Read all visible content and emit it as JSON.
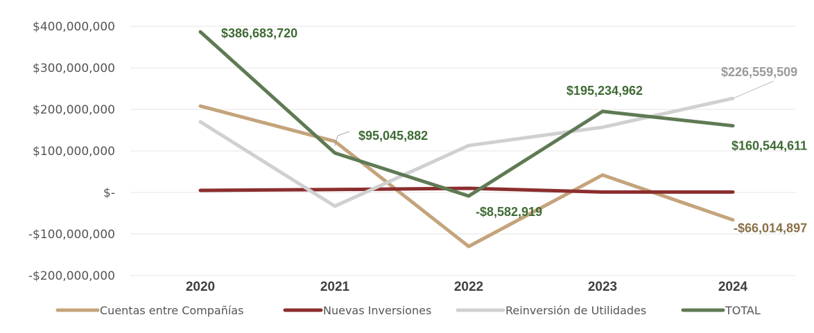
{
  "chart_data": {
    "type": "line",
    "title": "",
    "xlabel": "",
    "ylabel": "",
    "categories": [
      "2020",
      "2021",
      "2022",
      "2023",
      "2024"
    ],
    "ylim": [
      -200000000,
      400000000
    ],
    "y_ticks": [
      400000000,
      300000000,
      200000000,
      100000000,
      0,
      -100000000,
      -200000000
    ],
    "y_tick_labels": [
      "$400,000,000",
      "$300,000,000",
      "$200,000,000",
      "$100,000,000",
      "$-",
      "-$100,000,000",
      "-$200,000,000"
    ],
    "grid": true,
    "legend_position": "bottom",
    "series": [
      {
        "name": "Cuentas entre Compañías",
        "color": "#C4A47C",
        "values": [
          208000000,
          123000000,
          -130000000,
          42000000,
          -66014897
        ]
      },
      {
        "name": "Nuevas Inversiones",
        "color": "#8B2E2E",
        "values": [
          5000000,
          7000000,
          10000000,
          1000000,
          1000000
        ]
      },
      {
        "name": "Reinversión de Utilidades",
        "color": "#D0D0D0",
        "values": [
          170000000,
          -33000000,
          113000000,
          157000000,
          226559509
        ]
      },
      {
        "name": "TOTAL",
        "color": "#5F7A54",
        "values": [
          386683720,
          95045882,
          -8582919,
          195234962,
          160544611
        ]
      }
    ],
    "data_labels": [
      {
        "series": "TOTAL",
        "category": "2020",
        "text": "$386,683,720",
        "color": "#3E6B34"
      },
      {
        "series": "TOTAL",
        "category": "2021",
        "text": "$95,045,882",
        "color": "#3E6B34"
      },
      {
        "series": "TOTAL",
        "category": "2022",
        "text": "-$8,582,919",
        "color": "#3E6B34"
      },
      {
        "series": "TOTAL",
        "category": "2023",
        "text": "$195,234,962",
        "color": "#3E6B34"
      },
      {
        "series": "TOTAL",
        "category": "2024",
        "text": "$160,544,611",
        "color": "#3E6B34"
      },
      {
        "series": "Reinversión de Utilidades",
        "category": "2024",
        "text": "$226,559,509",
        "color": "#9A9A9A"
      },
      {
        "series": "Cuentas entre Compañías",
        "category": "2024",
        "text": "-$66,014,897",
        "color": "#8A7048"
      }
    ]
  }
}
